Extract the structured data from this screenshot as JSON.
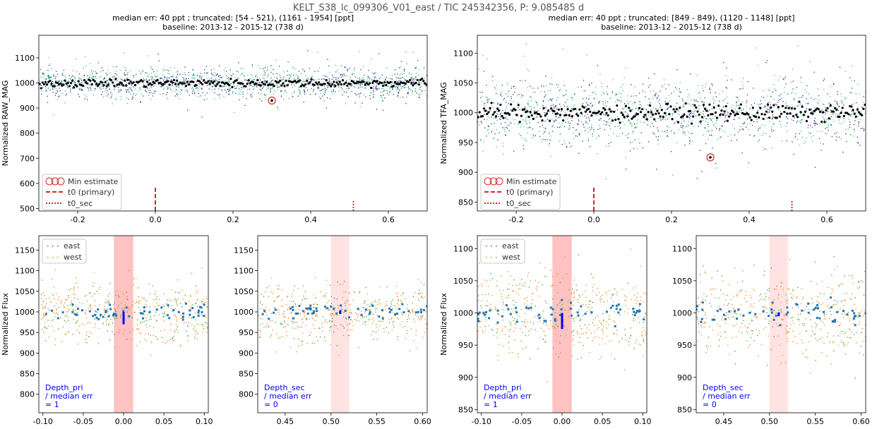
{
  "figure": {
    "suptitle": "KELT_S38_lc_099306_V01_east / TIC 245342356, P: 9.085485 d"
  },
  "colors": {
    "east": "#1f77b4",
    "west": "#ff7f0e",
    "raw_purple": "#3b2a8c",
    "raw_green": "#2ecc71",
    "binned": "#000000",
    "primary_marker": "#d62728",
    "depth_text": "#0000ff",
    "pri_band": "#ff9999",
    "sec_band": "#ffd6d6"
  },
  "panels": {
    "left_top": {
      "subtitle_line1": "median err: 40 ppt ; truncated: [54 - 521), (1161 - 1954] [ppt]",
      "subtitle_line2": "baseline: 2013-12 - 2015-12 (738 d)",
      "ylabel": "Normalized RAW_MAG",
      "legend": [
        "Min estimate",
        "t0 (primary)",
        "t0_sec"
      ],
      "min_estimate": {
        "x": 0.3,
        "y": 930
      }
    },
    "right_top": {
      "subtitle_line1": "median err: 40 ppt ; truncated: [849 - 849), (1120 - 1148] [ppt]",
      "subtitle_line2": "baseline: 2013-12 - 2015-12 (738 d)",
      "ylabel": "Normalized TFA_MAG",
      "legend": [
        "Min estimate",
        "t0 (primary)",
        "t0_sec"
      ],
      "min_estimate": {
        "x": 0.3,
        "y": 925
      }
    },
    "left_pri": {
      "ylabel": "Normalized Flux",
      "legend": [
        "east",
        "west"
      ],
      "depth": [
        "Depth_pri",
        " / median err",
        " = 1"
      ]
    },
    "left_sec": {
      "depth": [
        "Depth_sec",
        " / median err",
        " = 0"
      ]
    },
    "right_pri": {
      "ylabel": "Normalized Flux",
      "legend": [
        "east",
        "west"
      ],
      "depth": [
        "Depth_pri",
        " / median err",
        " = 1"
      ]
    },
    "right_sec": {
      "depth": [
        "Depth_sec",
        " / median err",
        " = 0"
      ]
    }
  },
  "chart_data": [
    {
      "type": "scatter",
      "title": "median err: 40 ppt ; truncated: [54 - 521), (1161 - 1954] [ppt] / baseline: 2013-12 - 2015-12 (738 d)",
      "ylabel": "Normalized RAW_MAG",
      "xlim": [
        -0.3,
        0.7
      ],
      "ylim": [
        490,
        1190
      ],
      "xticks": [
        -0.2,
        0.0,
        0.2,
        0.4,
        0.6
      ],
      "yticks": [
        500,
        600,
        700,
        800,
        900,
        1000,
        1100
      ],
      "series": [
        {
          "name": "Min estimate",
          "x": [
            0.3
          ],
          "y": [
            930
          ]
        }
      ],
      "binned_level": 1000,
      "t0_primary": 0.0,
      "t0_sec": 0.51
    },
    {
      "type": "scatter",
      "title": "median err: 40 ppt ; truncated: [849 - 849), (1120 - 1148] [ppt] / baseline: 2013-12 - 2015-12 (738 d)",
      "ylabel": "Normalized TFA_MAG",
      "xlim": [
        -0.3,
        0.7
      ],
      "ylim": [
        835,
        1130
      ],
      "xticks": [
        -0.2,
        0.0,
        0.2,
        0.4,
        0.6
      ],
      "yticks": [
        850,
        900,
        950,
        1000,
        1050,
        1100
      ],
      "series": [
        {
          "name": "Min estimate",
          "x": [
            0.3
          ],
          "y": [
            925
          ]
        }
      ],
      "binned_level": 1000,
      "t0_primary": 0.0,
      "t0_sec": 0.51
    },
    {
      "type": "scatter",
      "ylabel": "Normalized Flux",
      "xlim": [
        -0.105,
        0.105
      ],
      "ylim": [
        755,
        1185
      ],
      "xticks": [
        -0.1,
        -0.05,
        0.0,
        0.05,
        0.1
      ],
      "yticks": [
        800,
        850,
        900,
        950,
        1000,
        1050,
        1100,
        1150
      ],
      "series": [
        {
          "name": "east"
        },
        {
          "name": "west"
        }
      ],
      "band": [
        -0.012,
        0.012
      ],
      "depth_bar": {
        "x": 0.0,
        "y": [
          970,
          1000
        ]
      },
      "depth_ratio": 1
    },
    {
      "type": "scatter",
      "xlim": [
        0.42,
        0.605
      ],
      "ylim": [
        755,
        1185
      ],
      "xticks": [
        0.45,
        0.5,
        0.55,
        0.6
      ],
      "yticks": [
        800,
        850,
        900,
        950,
        1000,
        1050,
        1100,
        1150
      ],
      "band": [
        0.5,
        0.52
      ],
      "depth_bar": {
        "x": 0.51,
        "y": [
          995,
          1002
        ]
      },
      "depth_ratio": 0
    },
    {
      "type": "scatter",
      "ylabel": "Normalized Flux",
      "xlim": [
        -0.105,
        0.105
      ],
      "ylim": [
        845,
        1120
      ],
      "xticks": [
        -0.1,
        -0.05,
        0.0,
        0.05,
        0.1
      ],
      "yticks": [
        850,
        900,
        950,
        1000,
        1050,
        1100
      ],
      "series": [
        {
          "name": "east"
        },
        {
          "name": "west"
        }
      ],
      "band": [
        -0.012,
        0.012
      ],
      "depth_bar": {
        "x": 0.0,
        "y": [
          975,
          1000
        ]
      },
      "depth_ratio": 1
    },
    {
      "type": "scatter",
      "xlim": [
        0.42,
        0.605
      ],
      "ylim": [
        845,
        1120
      ],
      "xticks": [
        0.45,
        0.5,
        0.55,
        0.6
      ],
      "yticks": [
        850,
        900,
        950,
        1000,
        1050,
        1100
      ],
      "band": [
        0.5,
        0.52
      ],
      "depth_bar": {
        "x": 0.51,
        "y": [
          995,
          1000
        ]
      },
      "depth_ratio": 0
    }
  ]
}
